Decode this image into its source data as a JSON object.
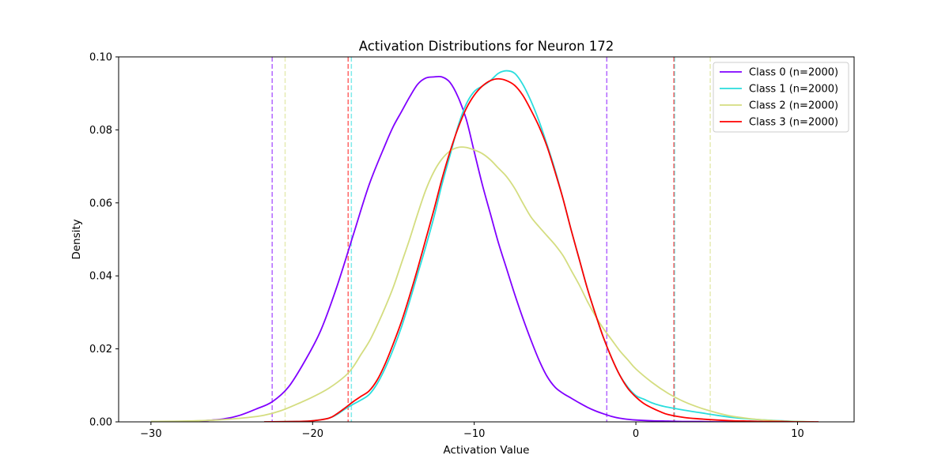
{
  "chart_data": {
    "type": "line",
    "title": "Activation Distributions for Neuron 172",
    "xlabel": "Activation Value",
    "ylabel": "Density",
    "xlim": [
      -32,
      13.5
    ],
    "ylim": [
      0,
      0.1
    ],
    "xticks": [
      -30,
      -20,
      -10,
      0,
      10
    ],
    "yticks": [
      0.0,
      0.02,
      0.04,
      0.06,
      0.08,
      0.1
    ],
    "grid": false,
    "legend_position": "top-right",
    "series": [
      {
        "name": "Class 0 (n=2000)",
        "color": "#8000ff",
        "x": [
          -27,
          -25.5,
          -24.5,
          -23.5,
          -22.5,
          -21.5,
          -20.5,
          -19.5,
          -18.5,
          -17.5,
          -16.5,
          -15.5,
          -15,
          -14.5,
          -14,
          -13.5,
          -13,
          -12.5,
          -12,
          -11.5,
          -11,
          -10.5,
          -10,
          -9.5,
          -9,
          -8.5,
          -8,
          -7.5,
          -7,
          -6.5,
          -6,
          -5.5,
          -5,
          -4.5,
          -4,
          -3.5,
          -3,
          -2.5,
          -2,
          -1.5,
          -1,
          -0.5,
          0,
          1,
          2,
          3,
          4,
          5,
          6,
          7.2
        ],
        "y": [
          0.0002,
          0.0008,
          0.0018,
          0.0035,
          0.0055,
          0.0095,
          0.0165,
          0.025,
          0.037,
          0.051,
          0.065,
          0.076,
          0.081,
          0.085,
          0.089,
          0.0925,
          0.0942,
          0.0945,
          0.0945,
          0.093,
          0.089,
          0.083,
          0.074,
          0.065,
          0.057,
          0.049,
          0.042,
          0.035,
          0.0285,
          0.0225,
          0.017,
          0.0125,
          0.0095,
          0.0078,
          0.0065,
          0.0052,
          0.004,
          0.003,
          0.0022,
          0.0015,
          0.001,
          0.0007,
          0.0005,
          0.0003,
          0.0002,
          0.0001,
          0.0001,
          0.0,
          0.0,
          0.0
        ]
      },
      {
        "name": "Class 1 (n=2000)",
        "color": "#2adddd",
        "x": [
          -23,
          -21,
          -20,
          -19,
          -18.5,
          -18,
          -17.5,
          -17,
          -16.5,
          -16,
          -15.5,
          -15,
          -14.5,
          -14,
          -13.5,
          -13,
          -12.5,
          -12,
          -11.5,
          -11,
          -10.5,
          -10,
          -9.5,
          -9,
          -8.5,
          -8,
          -7.5,
          -7,
          -6.5,
          -6,
          -5.5,
          -5,
          -4.5,
          -4,
          -3.5,
          -3,
          -2.5,
          -2,
          -1.5,
          -1,
          -0.5,
          0,
          0.5,
          1,
          1.5,
          2,
          3,
          4,
          5,
          6,
          7,
          8,
          9,
          10,
          11
        ],
        "y": [
          0.0,
          0.0001,
          0.0003,
          0.001,
          0.002,
          0.0035,
          0.0048,
          0.006,
          0.0075,
          0.0105,
          0.0148,
          0.02,
          0.026,
          0.033,
          0.0405,
          0.048,
          0.056,
          0.065,
          0.073,
          0.081,
          0.087,
          0.0905,
          0.092,
          0.0935,
          0.0955,
          0.0962,
          0.0955,
          0.0925,
          0.088,
          0.0825,
          0.076,
          0.069,
          0.061,
          0.0525,
          0.0445,
          0.0365,
          0.0295,
          0.023,
          0.0175,
          0.0128,
          0.0095,
          0.0072,
          0.0062,
          0.0052,
          0.0045,
          0.004,
          0.0032,
          0.0025,
          0.0018,
          0.0012,
          0.0008,
          0.0005,
          0.0003,
          0.0001,
          0.0
        ]
      },
      {
        "name": "Class 2 (n=2000)",
        "color": "#d4dd80",
        "x": [
          -30,
          -28,
          -26,
          -24,
          -23,
          -22,
          -21,
          -20,
          -19,
          -18,
          -17.5,
          -17,
          -16.5,
          -16,
          -15.5,
          -15,
          -14.5,
          -14,
          -13.5,
          -13,
          -12.5,
          -12,
          -11.5,
          -11,
          -10.5,
          -10,
          -9.5,
          -9,
          -8.5,
          -8,
          -7.5,
          -7,
          -6.5,
          -6,
          -5.5,
          -5,
          -4.5,
          -4,
          -3.5,
          -3,
          -2.5,
          -2,
          -1.5,
          -1,
          -0.5,
          0,
          1,
          2,
          3,
          4,
          5,
          6,
          7,
          8,
          9,
          10,
          11
        ],
        "y": [
          0.0001,
          0.0002,
          0.0005,
          0.0012,
          0.0018,
          0.003,
          0.0048,
          0.0068,
          0.0092,
          0.0125,
          0.015,
          0.0185,
          0.022,
          0.0265,
          0.0315,
          0.037,
          0.0435,
          0.05,
          0.057,
          0.0635,
          0.0685,
          0.072,
          0.0742,
          0.0752,
          0.0752,
          0.0745,
          0.0735,
          0.0718,
          0.0695,
          0.0672,
          0.064,
          0.06,
          0.0562,
          0.0535,
          0.051,
          0.0485,
          0.0455,
          0.0415,
          0.0375,
          0.033,
          0.029,
          0.0255,
          0.0225,
          0.0195,
          0.017,
          0.0145,
          0.0108,
          0.0078,
          0.0055,
          0.0038,
          0.0025,
          0.0015,
          0.0009,
          0.0005,
          0.0002,
          0.0001,
          0.0
        ]
      },
      {
        "name": "Class 3 (n=2000)",
        "color": "#ff0000",
        "x": [
          -23,
          -21,
          -20,
          -19,
          -18.5,
          -18,
          -17.5,
          -17,
          -16.5,
          -16,
          -15.5,
          -15,
          -14.5,
          -14,
          -13.5,
          -13,
          -12.5,
          -12,
          -11.5,
          -11,
          -10.5,
          -10,
          -9.5,
          -9,
          -8.5,
          -8,
          -7.5,
          -7,
          -6.5,
          -6,
          -5.5,
          -5,
          -4.5,
          -4,
          -3.5,
          -3,
          -2.5,
          -2,
          -1.5,
          -1,
          -0.5,
          0,
          0.5,
          1,
          1.5,
          2,
          3,
          4,
          5,
          6,
          7,
          8,
          9,
          10,
          11.3
        ],
        "y": [
          0.0,
          0.0001,
          0.0003,
          0.001,
          0.0022,
          0.0038,
          0.0055,
          0.007,
          0.0085,
          0.0115,
          0.016,
          0.0215,
          0.0275,
          0.0345,
          0.042,
          0.05,
          0.058,
          0.0665,
          0.074,
          0.0805,
          0.0858,
          0.0895,
          0.092,
          0.0935,
          0.094,
          0.0935,
          0.0922,
          0.0895,
          0.0855,
          0.081,
          0.0755,
          0.0685,
          0.061,
          0.0525,
          0.0445,
          0.0365,
          0.0295,
          0.023,
          0.0175,
          0.0128,
          0.0092,
          0.0068,
          0.005,
          0.0038,
          0.0028,
          0.002,
          0.0012,
          0.0008,
          0.0005,
          0.0003,
          0.0002,
          0.0001,
          0.0001,
          0.0,
          0.0
        ]
      }
    ],
    "vlines": [
      {
        "series": 0,
        "x": -22.5,
        "color": "#8000ff"
      },
      {
        "series": 0,
        "x": -1.8,
        "color": "#8000ff"
      },
      {
        "series": 1,
        "x": -17.6,
        "color": "#2adddd"
      },
      {
        "series": 1,
        "x": 2.4,
        "color": "#2adddd"
      },
      {
        "series": 2,
        "x": -21.7,
        "color": "#d4dd80"
      },
      {
        "series": 2,
        "x": 4.6,
        "color": "#d4dd80"
      },
      {
        "series": 3,
        "x": -17.8,
        "color": "#ff0000"
      },
      {
        "series": 3,
        "x": 2.35,
        "color": "#ff0000"
      }
    ]
  }
}
